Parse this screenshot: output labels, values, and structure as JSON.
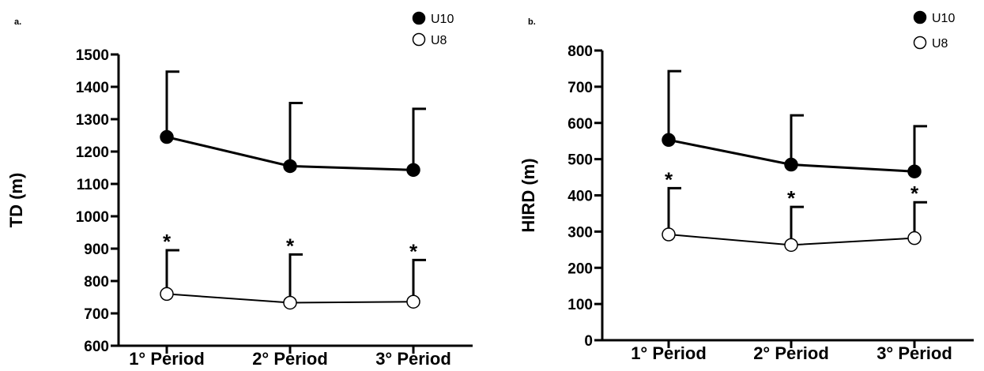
{
  "chart_data": [
    {
      "type": "line",
      "panel_label": "a.",
      "categories": [
        "1° Period",
        "2° Period",
        "3° Period"
      ],
      "ylabel": "TD (m)",
      "xlabel": "",
      "ylim": [
        600,
        1500
      ],
      "yticks": [
        600,
        700,
        800,
        900,
        1000,
        1100,
        1200,
        1300,
        1400,
        1500
      ],
      "legend_position": "top-right",
      "grid": false,
      "series": [
        {
          "name": "U10",
          "marker": "filled-circle",
          "values": [
            1245,
            1155,
            1143
          ],
          "error_upper": [
            1447,
            1350,
            1332
          ]
        },
        {
          "name": "U8",
          "marker": "open-circle",
          "values": [
            760,
            733,
            736
          ],
          "error_upper": [
            895,
            882,
            865
          ],
          "annotation": "*"
        }
      ]
    },
    {
      "type": "line",
      "panel_label": "b.",
      "categories": [
        "1° Period",
        "2° Period",
        "3° Period"
      ],
      "ylabel": "HIRD (m)",
      "xlabel": "",
      "ylim": [
        0,
        800
      ],
      "yticks": [
        0,
        100,
        200,
        300,
        400,
        500,
        600,
        700,
        800
      ],
      "legend_position": "top-right",
      "grid": false,
      "series": [
        {
          "name": "U10",
          "marker": "filled-circle",
          "values": [
            553,
            485,
            466
          ],
          "error_upper": [
            743,
            621,
            591
          ]
        },
        {
          "name": "U8",
          "marker": "open-circle",
          "values": [
            292,
            263,
            282
          ],
          "error_upper": [
            420,
            368,
            381
          ],
          "annotation": "*"
        }
      ]
    }
  ]
}
